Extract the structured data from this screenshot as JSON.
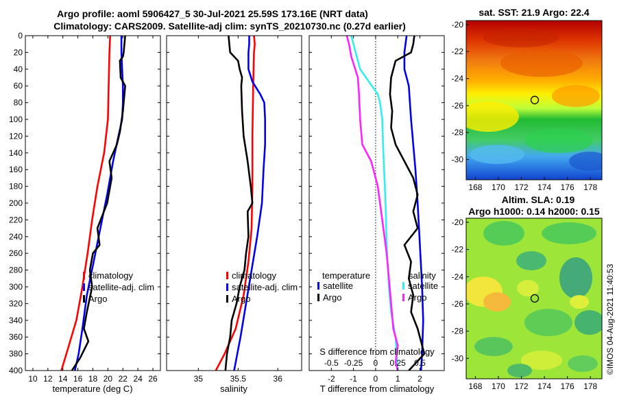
{
  "header": {
    "title_line1": "Argo profile: aoml 5906427_5 30-Jul-2021 25.59S 173.16E (NRT data)",
    "title_line2": "Climatology: CARS2009. Satellite-adj clim: synTS_20210730.nc (0.27d earlier)"
  },
  "credit": "©IMOS 04-Aug-2021 11:40:53",
  "colors": {
    "climatology": "#ff0000",
    "satellite": "#0000ee",
    "argo": "#000000",
    "sat_salinity": "#ff22ff",
    "sat_temperature": "#33eeee"
  },
  "chart_data": [
    {
      "id": "temperature",
      "type": "line",
      "xlabel": "temperature (deg C)",
      "ylim": [
        0,
        400
      ],
      "yticks": [
        0,
        20,
        40,
        60,
        80,
        100,
        120,
        140,
        160,
        180,
        200,
        220,
        240,
        260,
        280,
        300,
        320,
        340,
        360,
        380,
        400
      ],
      "xlim": [
        9,
        27
      ],
      "xticks": [
        10,
        12,
        14,
        16,
        18,
        20,
        22,
        24,
        26
      ],
      "legend": [
        "climatology",
        "satellite-adj. clim",
        "Argo"
      ],
      "series": [
        {
          "name": "climatology",
          "color": "#ff0000",
          "points": [
            [
              20.3,
              0
            ],
            [
              20.2,
              20
            ],
            [
              20.1,
              60
            ],
            [
              20.0,
              100
            ],
            [
              19.5,
              140
            ],
            [
              18.6,
              180
            ],
            [
              17.9,
              220
            ],
            [
              17.3,
              260
            ],
            [
              16.6,
              300
            ],
            [
              15.8,
              340
            ],
            [
              14.8,
              370
            ],
            [
              13.8,
              400
            ]
          ]
        },
        {
          "name": "satellite-adj. clim",
          "color": "#0000ee",
          "points": [
            [
              21.8,
              0
            ],
            [
              21.8,
              10
            ],
            [
              21.8,
              20
            ],
            [
              21.9,
              40
            ],
            [
              22.0,
              60
            ],
            [
              22.0,
              80
            ],
            [
              21.9,
              100
            ],
            [
              21.4,
              120
            ],
            [
              20.7,
              150
            ],
            [
              19.9,
              190
            ],
            [
              19.0,
              230
            ],
            [
              18.1,
              270
            ],
            [
              17.2,
              310
            ],
            [
              16.6,
              350
            ],
            [
              16.1,
              380
            ],
            [
              15.6,
              400
            ]
          ]
        },
        {
          "name": "Argo",
          "color": "#000000",
          "points": [
            [
              22.3,
              0
            ],
            [
              22.2,
              10
            ],
            [
              22.1,
              20
            ],
            [
              22.0,
              25
            ],
            [
              21.6,
              30
            ],
            [
              21.7,
              50
            ],
            [
              22.3,
              60
            ],
            [
              22.0,
              90
            ],
            [
              21.6,
              115
            ],
            [
              21.2,
              130
            ],
            [
              20.2,
              150
            ],
            [
              20.5,
              170
            ],
            [
              19.9,
              200
            ],
            [
              18.6,
              230
            ],
            [
              18.9,
              250
            ],
            [
              18.0,
              260
            ],
            [
              17.6,
              280
            ],
            [
              17.9,
              300
            ],
            [
              17.2,
              330
            ],
            [
              16.8,
              350
            ],
            [
              17.4,
              365
            ],
            [
              16.3,
              385
            ],
            [
              15.2,
              400
            ]
          ]
        }
      ]
    },
    {
      "id": "salinity",
      "type": "line",
      "xlabel": "salinity",
      "ylim": [
        0,
        400
      ],
      "xlim": [
        34.6,
        36.3
      ],
      "xticks": [
        35,
        35.5,
        36
      ],
      "legend": [
        "climatology",
        "satellite-adj. clim",
        "Argo"
      ],
      "series": [
        {
          "name": "climatology",
          "color": "#ff0000",
          "points": [
            [
              35.7,
              0
            ],
            [
              35.71,
              10
            ],
            [
              35.7,
              20
            ],
            [
              35.69,
              60
            ],
            [
              35.68,
              120
            ],
            [
              35.68,
              180
            ],
            [
              35.67,
              230
            ],
            [
              35.63,
              270
            ],
            [
              35.57,
              310
            ],
            [
              35.47,
              350
            ],
            [
              35.33,
              380
            ],
            [
              35.22,
              400
            ]
          ]
        },
        {
          "name": "satellite-adj. clim",
          "color": "#0000ee",
          "points": [
            [
              35.64,
              0
            ],
            [
              35.64,
              10
            ],
            [
              35.63,
              20
            ],
            [
              35.63,
              40
            ],
            [
              35.68,
              55
            ],
            [
              35.78,
              70
            ],
            [
              35.83,
              80
            ],
            [
              35.84,
              100
            ],
            [
              35.84,
              130
            ],
            [
              35.82,
              160
            ],
            [
              35.8,
              200
            ],
            [
              35.74,
              240
            ],
            [
              35.67,
              280
            ],
            [
              35.6,
              320
            ],
            [
              35.53,
              360
            ],
            [
              35.45,
              400
            ]
          ]
        },
        {
          "name": "Argo",
          "color": "#000000",
          "points": [
            [
              35.38,
              0
            ],
            [
              35.39,
              10
            ],
            [
              35.4,
              20
            ],
            [
              35.5,
              30
            ],
            [
              35.52,
              40
            ],
            [
              35.55,
              50
            ],
            [
              35.54,
              60
            ],
            [
              35.55,
              90
            ],
            [
              35.57,
              120
            ],
            [
              35.62,
              150
            ],
            [
              35.66,
              180
            ],
            [
              35.68,
              200
            ],
            [
              35.62,
              210
            ],
            [
              35.63,
              240
            ],
            [
              35.6,
              260
            ],
            [
              35.58,
              280
            ],
            [
              35.52,
              300
            ],
            [
              35.48,
              320
            ],
            [
              35.42,
              340
            ],
            [
              35.4,
              360
            ],
            [
              35.36,
              380
            ],
            [
              35.34,
              400
            ]
          ]
        }
      ]
    },
    {
      "id": "difference",
      "type": "line",
      "xlabel": "T difference from climatology",
      "xlabel_top": "S difference from climatology",
      "ylim": [
        0,
        400
      ],
      "xlim": [
        -3,
        3.1
      ],
      "xticks": [
        -2,
        -1,
        0,
        1,
        2
      ],
      "xticks_s": [
        "-0.5",
        "-0.25",
        "0",
        "0.25",
        "0.5"
      ],
      "xticks_s_values": [
        -0.5,
        -0.25,
        0,
        0.25,
        0.5
      ],
      "s_scale": 4,
      "zero_line": true,
      "legend": {
        "temperature_header": "temperature",
        "salinity_header": "salinity",
        "temperature_items": [
          "satellite",
          "Argo"
        ],
        "salinity_items": [
          "satellite",
          "Argo"
        ]
      },
      "series": [
        {
          "name": "temperature satellite",
          "color": "#0000ee",
          "points": [
            [
              1.4,
              0
            ],
            [
              1.3,
              20
            ],
            [
              1.3,
              40
            ],
            [
              1.5,
              60
            ],
            [
              1.6,
              100
            ],
            [
              1.7,
              130
            ],
            [
              1.8,
              160
            ],
            [
              1.9,
              200
            ],
            [
              2.0,
              250
            ],
            [
              2.1,
              300
            ],
            [
              2.15,
              340
            ],
            [
              2.1,
              380
            ],
            [
              2.05,
              400
            ]
          ]
        },
        {
          "name": "temperature Argo",
          "color": "#000000",
          "points": [
            [
              1.75,
              0
            ],
            [
              1.7,
              10
            ],
            [
              1.6,
              20
            ],
            [
              0.9,
              30
            ],
            [
              0.7,
              50
            ],
            [
              0.65,
              70
            ],
            [
              0.75,
              90
            ],
            [
              0.7,
              110
            ],
            [
              0.9,
              130
            ],
            [
              1.3,
              150
            ],
            [
              1.7,
              170
            ],
            [
              1.9,
              190
            ],
            [
              1.7,
              210
            ],
            [
              1.9,
              230
            ],
            [
              1.3,
              250
            ],
            [
              1.6,
              270
            ],
            [
              1.5,
              290
            ],
            [
              1.7,
              310
            ],
            [
              1.6,
              330
            ],
            [
              1.9,
              350
            ],
            [
              2.1,
              370
            ],
            [
              2.2,
              380
            ],
            [
              1.5,
              400
            ]
          ]
        },
        {
          "name": "salinity satellite",
          "color": "#33eeee",
          "points": [
            [
              -1.1,
              0
            ],
            [
              -0.9,
              20
            ],
            [
              -0.7,
              40
            ],
            [
              -0.3,
              55
            ],
            [
              0.1,
              70
            ],
            [
              0.2,
              80
            ],
            [
              0.3,
              100
            ],
            [
              0.35,
              140
            ],
            [
              0.45,
              200
            ],
            [
              0.5,
              250
            ],
            [
              0.6,
              300
            ],
            [
              0.7,
              330
            ],
            [
              0.9,
              360
            ],
            [
              1.0,
              400
            ]
          ]
        },
        {
          "name": "salinity Argo",
          "color": "#ff22ff",
          "points": [
            [
              -1.3,
              0
            ],
            [
              -1.2,
              10
            ],
            [
              -1.1,
              25
            ],
            [
              -0.8,
              50
            ],
            [
              -0.75,
              70
            ],
            [
              -0.7,
              100
            ],
            [
              -0.6,
              130
            ],
            [
              -0.2,
              150
            ],
            [
              -0.1,
              160
            ],
            [
              0.1,
              180
            ],
            [
              0.2,
              200
            ],
            [
              0.3,
              220
            ],
            [
              0.4,
              240
            ],
            [
              0.5,
              260
            ],
            [
              0.6,
              290
            ],
            [
              0.7,
              320
            ],
            [
              0.8,
              350
            ],
            [
              1.0,
              370
            ],
            [
              0.9,
              390
            ],
            [
              1.0,
              400
            ]
          ]
        }
      ]
    },
    {
      "id": "sst_map",
      "type": "heatmap",
      "title": "sat. SST: 21.9 Argo: 22.4",
      "xlim": [
        167.2,
        179
      ],
      "ylim": [
        -31.5,
        -19.7
      ],
      "xticks": [
        168,
        170,
        172,
        174,
        176,
        178
      ],
      "yticks": [
        -20,
        -22,
        -24,
        -26,
        -28,
        -30
      ],
      "marker": {
        "lon": 173.16,
        "lat": -25.59
      }
    },
    {
      "id": "sla_map",
      "type": "heatmap",
      "title_line1": "Altim. SLA: 0.19",
      "title_line2": "Argo h1000: 0.14 h2000: 0.15",
      "xlim": [
        167.2,
        179
      ],
      "ylim": [
        -31.5,
        -19.7
      ],
      "xticks": [
        168,
        170,
        172,
        174,
        176,
        178
      ],
      "yticks": [
        -20,
        -22,
        -24,
        -26,
        -28,
        -30
      ],
      "marker": {
        "lon": 173.16,
        "lat": -25.59
      }
    }
  ]
}
